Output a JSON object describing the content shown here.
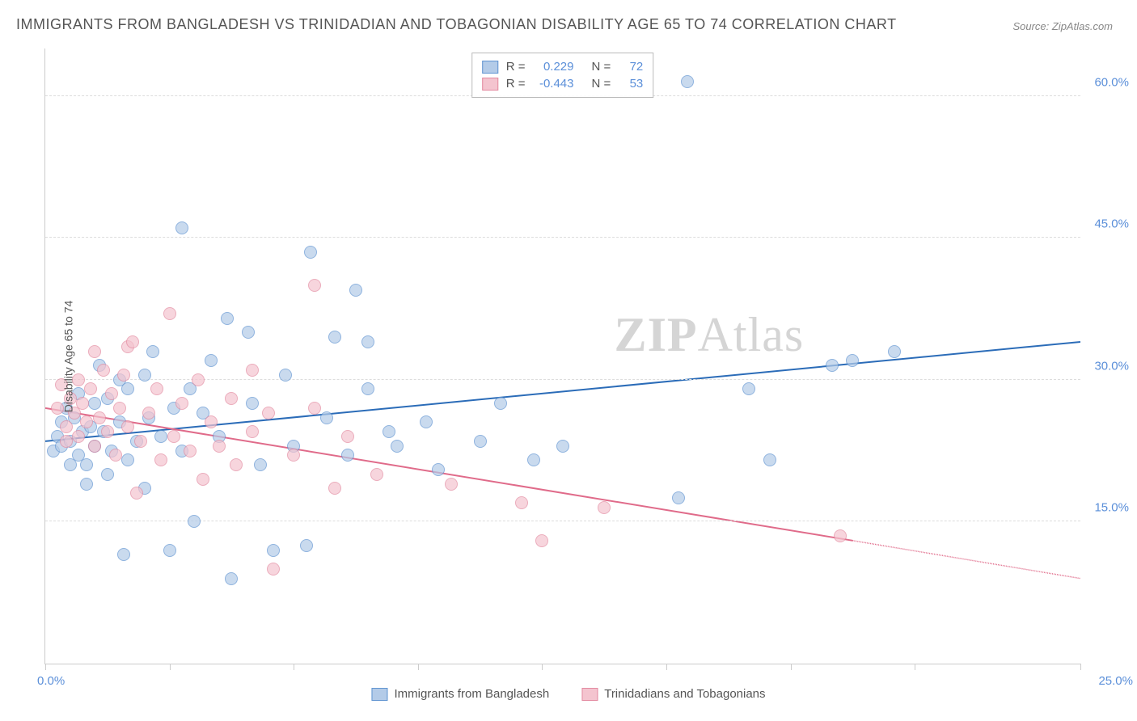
{
  "title": "IMMIGRANTS FROM BANGLADESH VS TRINIDADIAN AND TOBAGONIAN DISABILITY AGE 65 TO 74 CORRELATION CHART",
  "source": "Source: ZipAtlas.com",
  "ylabel": "Disability Age 65 to 74",
  "watermark_a": "ZIP",
  "watermark_b": "Atlas",
  "chart": {
    "type": "scatter",
    "xlim": [
      0,
      25
    ],
    "ylim": [
      0,
      65
    ],
    "xticks": [
      0,
      3,
      6,
      9,
      12,
      15,
      18,
      21,
      25
    ],
    "xtick_labels": {
      "first": "0.0%",
      "last": "25.0%"
    },
    "yticks": [
      15,
      30,
      45,
      60
    ],
    "ytick_labels": [
      "15.0%",
      "30.0%",
      "45.0%",
      "60.0%"
    ],
    "grid_color": "#dddddd",
    "background_color": "#ffffff",
    "axis_color": "#cccccc",
    "series": [
      {
        "name": "Immigrants from Bangladesh",
        "R": "0.229",
        "N": "72",
        "marker_fill": "#b3cbe8",
        "marker_stroke": "#6094d1",
        "line_color": "#2b6cb8",
        "line_start": [
          0,
          23.5
        ],
        "line_end": [
          25,
          34
        ],
        "points": [
          [
            0.2,
            22.5
          ],
          [
            0.3,
            24
          ],
          [
            0.4,
            25.5
          ],
          [
            0.4,
            23
          ],
          [
            0.5,
            27
          ],
          [
            0.6,
            21
          ],
          [
            0.6,
            23.5
          ],
          [
            0.7,
            26
          ],
          [
            0.8,
            28.5
          ],
          [
            0.8,
            22
          ],
          [
            0.9,
            24.5
          ],
          [
            1.0,
            21
          ],
          [
            1.0,
            19
          ],
          [
            1.1,
            25
          ],
          [
            1.2,
            27.5
          ],
          [
            1.2,
            23
          ],
          [
            1.3,
            31.5
          ],
          [
            1.4,
            24.5
          ],
          [
            1.5,
            20
          ],
          [
            1.5,
            28
          ],
          [
            1.6,
            22.5
          ],
          [
            1.8,
            25.5
          ],
          [
            1.8,
            30
          ],
          [
            1.9,
            11.5
          ],
          [
            2.0,
            29
          ],
          [
            2.0,
            21.5
          ],
          [
            2.2,
            23.5
          ],
          [
            2.4,
            30.5
          ],
          [
            2.4,
            18.5
          ],
          [
            2.5,
            26
          ],
          [
            2.6,
            33
          ],
          [
            2.8,
            24
          ],
          [
            3.0,
            12
          ],
          [
            3.1,
            27
          ],
          [
            3.3,
            22.5
          ],
          [
            3.3,
            46
          ],
          [
            3.5,
            29
          ],
          [
            3.6,
            15
          ],
          [
            3.8,
            26.5
          ],
          [
            4.0,
            32
          ],
          [
            4.2,
            24
          ],
          [
            4.4,
            36.5
          ],
          [
            4.5,
            9
          ],
          [
            4.9,
            35
          ],
          [
            5.0,
            27.5
          ],
          [
            5.2,
            21
          ],
          [
            5.5,
            12
          ],
          [
            5.8,
            30.5
          ],
          [
            6.0,
            23
          ],
          [
            6.3,
            12.5
          ],
          [
            6.4,
            43.5
          ],
          [
            6.8,
            26
          ],
          [
            7.0,
            34.5
          ],
          [
            7.3,
            22
          ],
          [
            7.5,
            39.5
          ],
          [
            7.8,
            29
          ],
          [
            7.8,
            34
          ],
          [
            8.3,
            24.5
          ],
          [
            8.5,
            23
          ],
          [
            9.2,
            25.5
          ],
          [
            9.5,
            20.5
          ],
          [
            10.5,
            23.5
          ],
          [
            11.0,
            27.5
          ],
          [
            11.8,
            21.5
          ],
          [
            12.5,
            23
          ],
          [
            15.3,
            17.5
          ],
          [
            15.5,
            61.5
          ],
          [
            17.0,
            29
          ],
          [
            17.5,
            21.5
          ],
          [
            19.0,
            31.5
          ],
          [
            19.5,
            32
          ],
          [
            20.5,
            33
          ]
        ]
      },
      {
        "name": "Trinidadians and Tobagonians",
        "R": "-0.443",
        "N": "53",
        "marker_fill": "#f4c4cf",
        "marker_stroke": "#e38aa0",
        "line_color": "#e06b8a",
        "line_start": [
          0,
          27
        ],
        "line_end": [
          19.5,
          13
        ],
        "line_dashed_end": [
          25,
          9
        ],
        "points": [
          [
            0.3,
            27
          ],
          [
            0.4,
            29.5
          ],
          [
            0.5,
            25
          ],
          [
            0.5,
            23.5
          ],
          [
            0.6,
            28
          ],
          [
            0.7,
            26.5
          ],
          [
            0.8,
            30
          ],
          [
            0.8,
            24
          ],
          [
            0.9,
            27.5
          ],
          [
            1.0,
            25.5
          ],
          [
            1.1,
            29
          ],
          [
            1.2,
            23
          ],
          [
            1.2,
            33
          ],
          [
            1.3,
            26
          ],
          [
            1.4,
            31
          ],
          [
            1.5,
            24.5
          ],
          [
            1.6,
            28.5
          ],
          [
            1.7,
            22
          ],
          [
            1.8,
            27
          ],
          [
            1.9,
            30.5
          ],
          [
            2.0,
            25
          ],
          [
            2.0,
            33.5
          ],
          [
            2.1,
            34
          ],
          [
            2.2,
            18
          ],
          [
            2.3,
            23.5
          ],
          [
            2.5,
            26.5
          ],
          [
            2.7,
            29
          ],
          [
            2.8,
            21.5
          ],
          [
            3.0,
            37
          ],
          [
            3.1,
            24
          ],
          [
            3.3,
            27.5
          ],
          [
            3.5,
            22.5
          ],
          [
            3.7,
            30
          ],
          [
            3.8,
            19.5
          ],
          [
            4.0,
            25.5
          ],
          [
            4.2,
            23
          ],
          [
            4.5,
            28
          ],
          [
            4.6,
            21
          ],
          [
            5.0,
            24.5
          ],
          [
            5.0,
            31
          ],
          [
            5.4,
            26.5
          ],
          [
            5.5,
            10
          ],
          [
            6.0,
            22
          ],
          [
            6.5,
            27
          ],
          [
            6.5,
            40
          ],
          [
            7.0,
            18.5
          ],
          [
            7.3,
            24
          ],
          [
            8.0,
            20
          ],
          [
            9.8,
            19
          ],
          [
            11.5,
            17
          ],
          [
            12.0,
            13
          ],
          [
            13.5,
            16.5
          ],
          [
            19.2,
            13.5
          ]
        ]
      }
    ]
  },
  "legend": {
    "r_label": "R =",
    "n_label": "N ="
  },
  "bottom_legend": [
    "Immigrants from Bangladesh",
    "Trinidadians and Tobagonians"
  ]
}
